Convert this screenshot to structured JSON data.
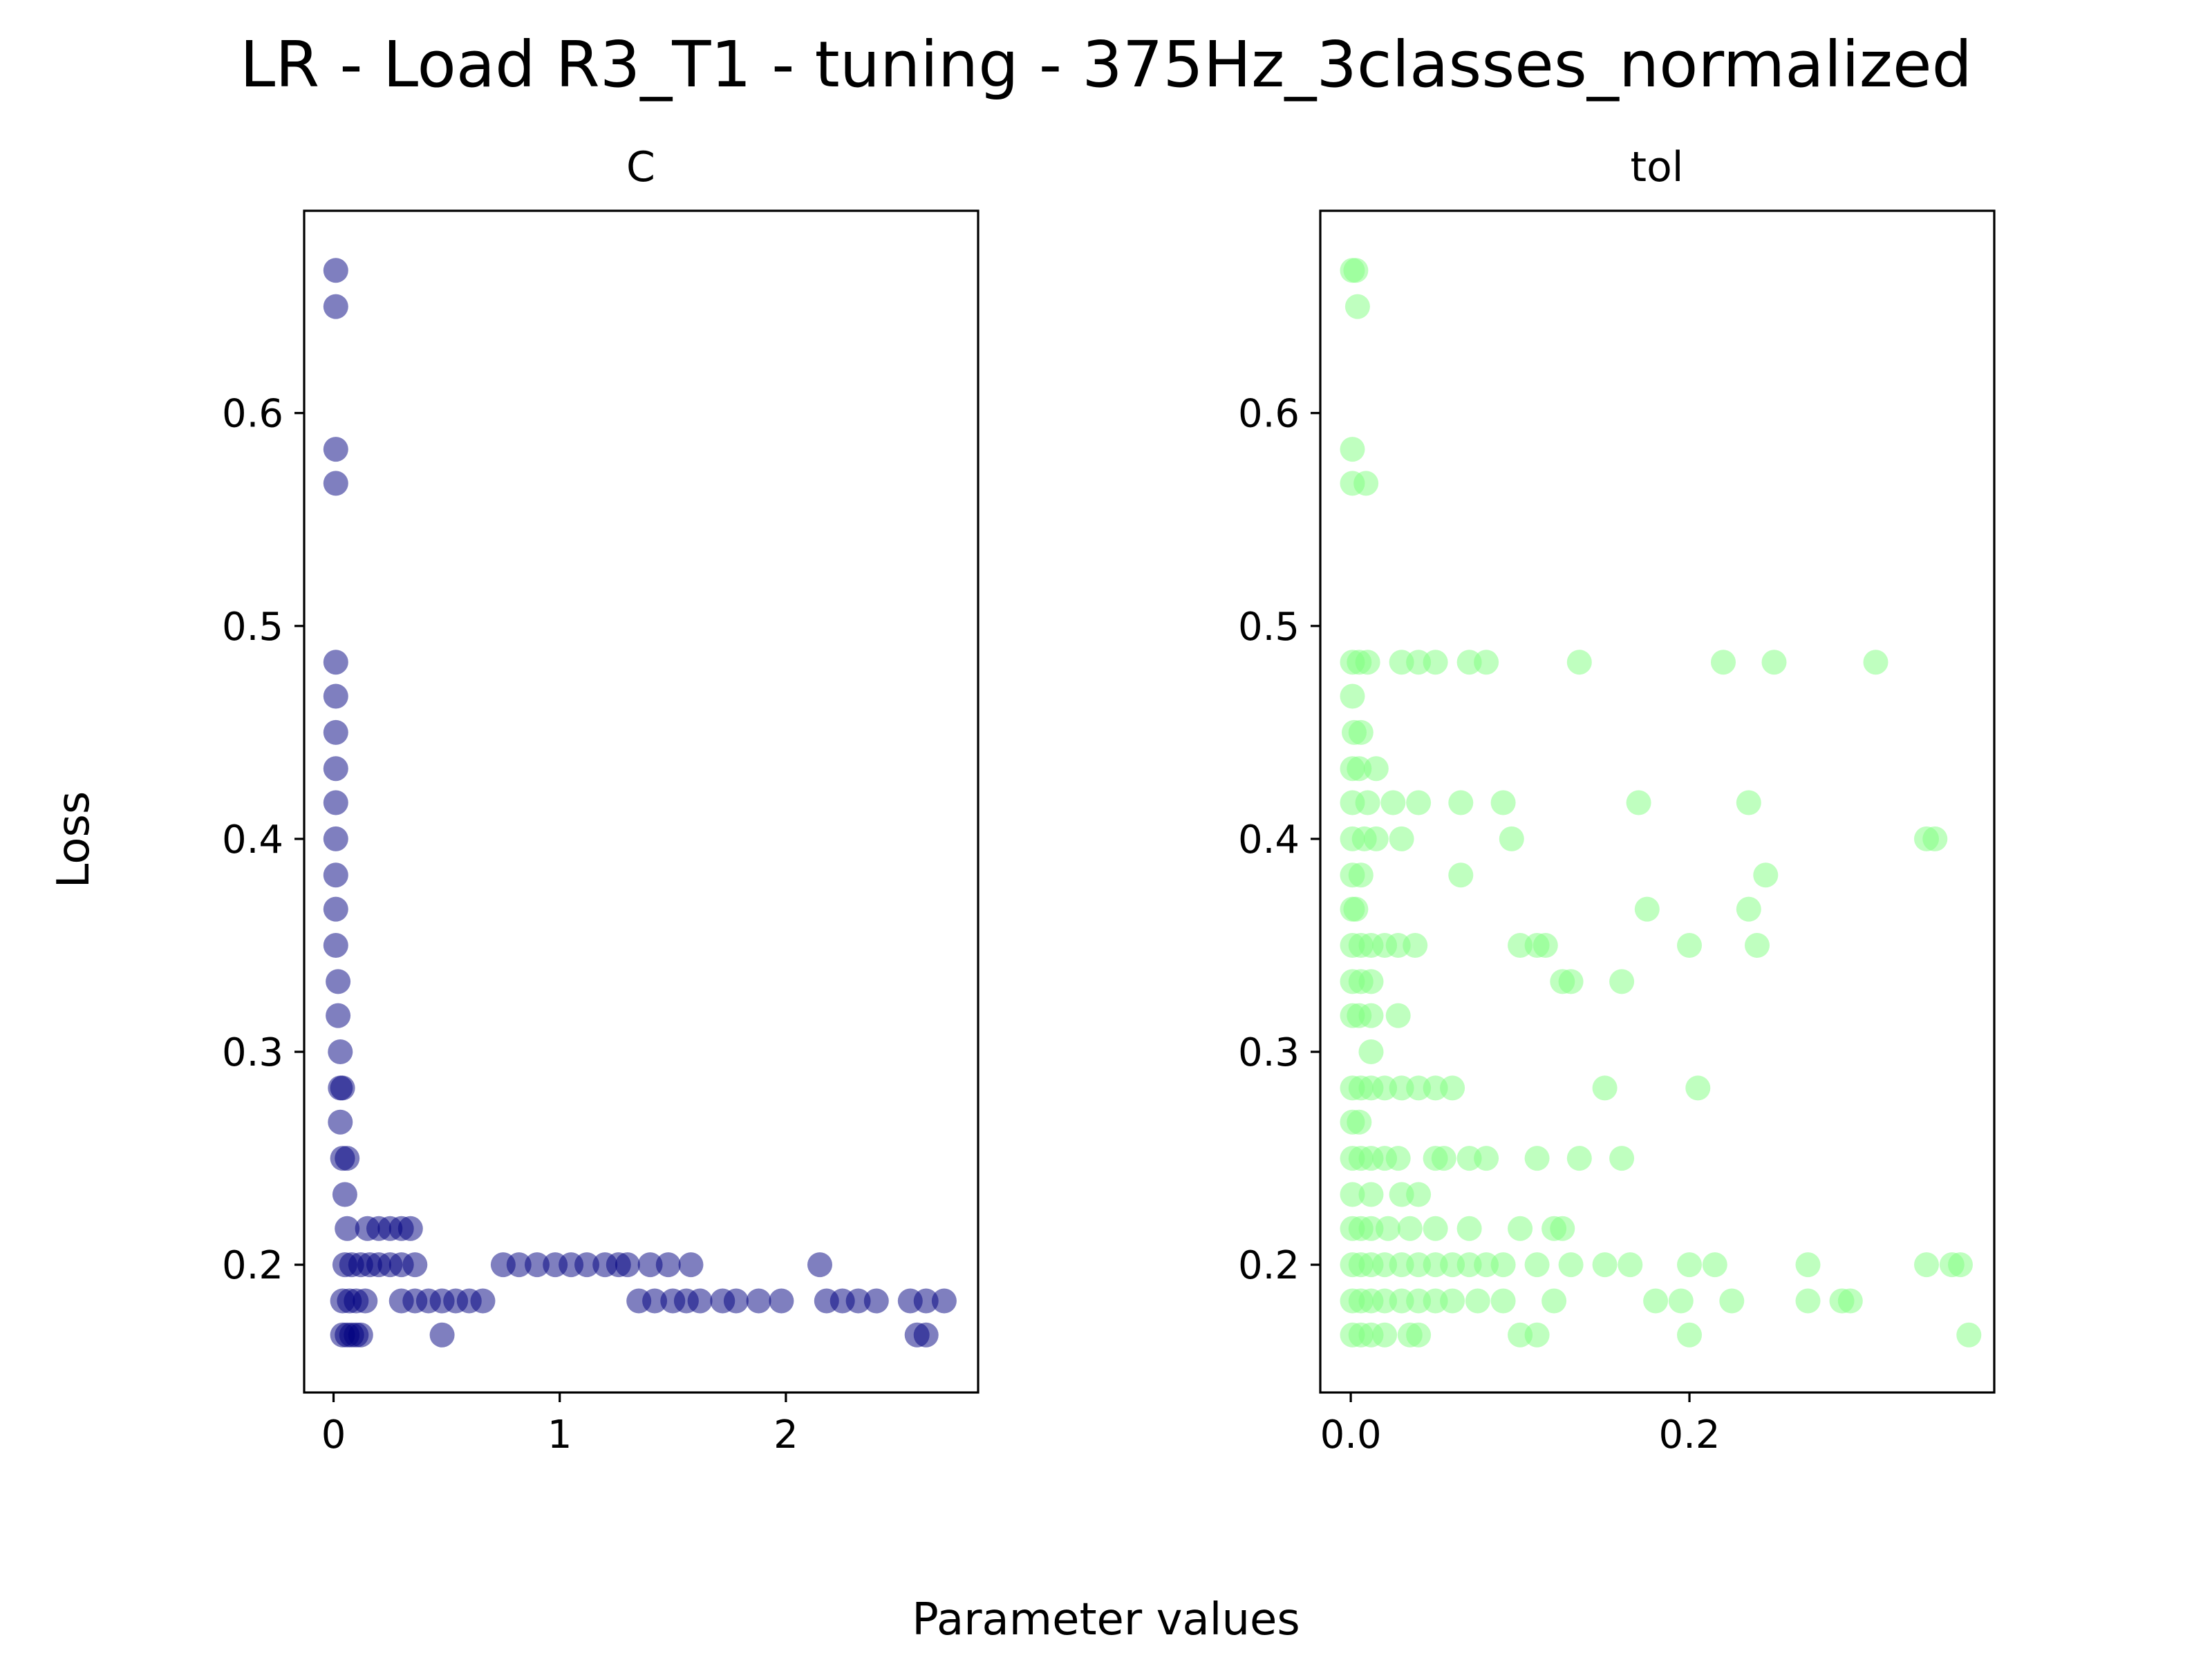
{
  "figure": {
    "title": "LR - Load R3_T1 - tuning - 375Hz_3classes_normalized",
    "xlabel": "Parameter values",
    "ylabel": "Loss"
  },
  "chart_data": [
    {
      "type": "scatter",
      "title": "C",
      "xlim": [
        -0.13,
        2.85
      ],
      "ylim": [
        0.14,
        0.695
      ],
      "xticks": [
        0,
        1,
        2
      ],
      "xtick_labels": [
        "0",
        "1",
        "2"
      ],
      "yticks": [
        0.2,
        0.3,
        0.4,
        0.5,
        0.6
      ],
      "ytick_labels": [
        "0.2",
        "0.3",
        "0.4",
        "0.5",
        "0.6"
      ],
      "color": "#000080",
      "points": [
        [
          0.01,
          0.667
        ],
        [
          0.01,
          0.65
        ],
        [
          0.01,
          0.583
        ],
        [
          0.01,
          0.567
        ],
        [
          0.01,
          0.483
        ],
        [
          0.01,
          0.467
        ],
        [
          0.01,
          0.45
        ],
        [
          0.01,
          0.433
        ],
        [
          0.01,
          0.417
        ],
        [
          0.01,
          0.4
        ],
        [
          0.01,
          0.383
        ],
        [
          0.01,
          0.367
        ],
        [
          0.01,
          0.35
        ],
        [
          0.02,
          0.333
        ],
        [
          0.02,
          0.317
        ],
        [
          0.03,
          0.3
        ],
        [
          0.03,
          0.283
        ],
        [
          0.04,
          0.283
        ],
        [
          0.03,
          0.267
        ],
        [
          0.04,
          0.25
        ],
        [
          0.06,
          0.25
        ],
        [
          0.05,
          0.233
        ],
        [
          0.06,
          0.217
        ],
        [
          0.04,
          0.167
        ],
        [
          0.06,
          0.167
        ],
        [
          0.08,
          0.167
        ],
        [
          0.1,
          0.167
        ],
        [
          0.12,
          0.167
        ],
        [
          0.04,
          0.183
        ],
        [
          0.07,
          0.183
        ],
        [
          0.1,
          0.183
        ],
        [
          0.14,
          0.183
        ],
        [
          0.05,
          0.2
        ],
        [
          0.08,
          0.2
        ],
        [
          0.12,
          0.2
        ],
        [
          0.16,
          0.2
        ],
        [
          0.2,
          0.2
        ],
        [
          0.25,
          0.2
        ],
        [
          0.3,
          0.2
        ],
        [
          0.36,
          0.2
        ],
        [
          0.15,
          0.217
        ],
        [
          0.2,
          0.217
        ],
        [
          0.25,
          0.217
        ],
        [
          0.3,
          0.217
        ],
        [
          0.34,
          0.217
        ],
        [
          0.3,
          0.183
        ],
        [
          0.36,
          0.183
        ],
        [
          0.42,
          0.183
        ],
        [
          0.48,
          0.183
        ],
        [
          0.54,
          0.183
        ],
        [
          0.6,
          0.183
        ],
        [
          0.66,
          0.183
        ],
        [
          0.48,
          0.167
        ],
        [
          0.75,
          0.2
        ],
        [
          0.82,
          0.2
        ],
        [
          0.9,
          0.2
        ],
        [
          0.98,
          0.2
        ],
        [
          1.05,
          0.2
        ],
        [
          1.12,
          0.2
        ],
        [
          1.2,
          0.2
        ],
        [
          1.26,
          0.2
        ],
        [
          1.3,
          0.2
        ],
        [
          1.4,
          0.2
        ],
        [
          1.48,
          0.2
        ],
        [
          1.58,
          0.2
        ],
        [
          1.35,
          0.183
        ],
        [
          1.42,
          0.183
        ],
        [
          1.5,
          0.183
        ],
        [
          1.56,
          0.183
        ],
        [
          1.62,
          0.183
        ],
        [
          1.72,
          0.183
        ],
        [
          1.78,
          0.183
        ],
        [
          1.88,
          0.183
        ],
        [
          1.98,
          0.183
        ],
        [
          2.15,
          0.2
        ],
        [
          2.18,
          0.183
        ],
        [
          2.25,
          0.183
        ],
        [
          2.32,
          0.183
        ],
        [
          2.4,
          0.183
        ],
        [
          2.55,
          0.183
        ],
        [
          2.62,
          0.183
        ],
        [
          2.7,
          0.183
        ],
        [
          2.58,
          0.167
        ],
        [
          2.62,
          0.167
        ]
      ]
    },
    {
      "type": "scatter",
      "title": "tol",
      "xlim": [
        -0.018,
        0.38
      ],
      "ylim": [
        0.14,
        0.695
      ],
      "xticks": [
        0.0,
        0.2
      ],
      "xtick_labels": [
        "0.0",
        "0.2"
      ],
      "yticks": [
        0.2,
        0.3,
        0.4,
        0.5,
        0.6
      ],
      "ytick_labels": [
        "0.2",
        "0.3",
        "0.4",
        "0.5",
        "0.6"
      ],
      "color": "#7fff7f",
      "points": [
        [
          0.001,
          0.667
        ],
        [
          0.003,
          0.667
        ],
        [
          0.004,
          0.65
        ],
        [
          0.001,
          0.583
        ],
        [
          0.001,
          0.567
        ],
        [
          0.009,
          0.567
        ],
        [
          0.001,
          0.483
        ],
        [
          0.005,
          0.483
        ],
        [
          0.01,
          0.483
        ],
        [
          0.03,
          0.483
        ],
        [
          0.04,
          0.483
        ],
        [
          0.05,
          0.483
        ],
        [
          0.07,
          0.483
        ],
        [
          0.08,
          0.483
        ],
        [
          0.135,
          0.483
        ],
        [
          0.22,
          0.483
        ],
        [
          0.25,
          0.483
        ],
        [
          0.31,
          0.483
        ],
        [
          0.001,
          0.467
        ],
        [
          0.002,
          0.45
        ],
        [
          0.006,
          0.45
        ],
        [
          0.001,
          0.433
        ],
        [
          0.005,
          0.433
        ],
        [
          0.015,
          0.433
        ],
        [
          0.001,
          0.417
        ],
        [
          0.01,
          0.417
        ],
        [
          0.025,
          0.417
        ],
        [
          0.04,
          0.417
        ],
        [
          0.065,
          0.417
        ],
        [
          0.09,
          0.417
        ],
        [
          0.17,
          0.417
        ],
        [
          0.235,
          0.417
        ],
        [
          0.001,
          0.4
        ],
        [
          0.008,
          0.4
        ],
        [
          0.015,
          0.4
        ],
        [
          0.03,
          0.4
        ],
        [
          0.095,
          0.4
        ],
        [
          0.34,
          0.4
        ],
        [
          0.345,
          0.4
        ],
        [
          0.001,
          0.383
        ],
        [
          0.006,
          0.383
        ],
        [
          0.065,
          0.383
        ],
        [
          0.245,
          0.383
        ],
        [
          0.001,
          0.367
        ],
        [
          0.003,
          0.367
        ],
        [
          0.175,
          0.367
        ],
        [
          0.235,
          0.367
        ],
        [
          0.001,
          0.35
        ],
        [
          0.006,
          0.35
        ],
        [
          0.012,
          0.35
        ],
        [
          0.02,
          0.35
        ],
        [
          0.028,
          0.35
        ],
        [
          0.038,
          0.35
        ],
        [
          0.1,
          0.35
        ],
        [
          0.11,
          0.35
        ],
        [
          0.115,
          0.35
        ],
        [
          0.2,
          0.35
        ],
        [
          0.24,
          0.35
        ],
        [
          0.001,
          0.333
        ],
        [
          0.006,
          0.333
        ],
        [
          0.012,
          0.333
        ],
        [
          0.125,
          0.333
        ],
        [
          0.13,
          0.333
        ],
        [
          0.16,
          0.333
        ],
        [
          0.001,
          0.317
        ],
        [
          0.005,
          0.317
        ],
        [
          0.012,
          0.317
        ],
        [
          0.028,
          0.317
        ],
        [
          0.012,
          0.3
        ],
        [
          0.001,
          0.283
        ],
        [
          0.006,
          0.283
        ],
        [
          0.012,
          0.283
        ],
        [
          0.02,
          0.283
        ],
        [
          0.03,
          0.283
        ],
        [
          0.04,
          0.283
        ],
        [
          0.05,
          0.283
        ],
        [
          0.06,
          0.283
        ],
        [
          0.15,
          0.283
        ],
        [
          0.205,
          0.283
        ],
        [
          0.001,
          0.267
        ],
        [
          0.005,
          0.267
        ],
        [
          0.001,
          0.25
        ],
        [
          0.006,
          0.25
        ],
        [
          0.012,
          0.25
        ],
        [
          0.02,
          0.25
        ],
        [
          0.028,
          0.25
        ],
        [
          0.05,
          0.25
        ],
        [
          0.055,
          0.25
        ],
        [
          0.07,
          0.25
        ],
        [
          0.08,
          0.25
        ],
        [
          0.11,
          0.25
        ],
        [
          0.135,
          0.25
        ],
        [
          0.16,
          0.25
        ],
        [
          0.001,
          0.233
        ],
        [
          0.012,
          0.233
        ],
        [
          0.03,
          0.233
        ],
        [
          0.04,
          0.233
        ],
        [
          0.001,
          0.217
        ],
        [
          0.006,
          0.217
        ],
        [
          0.012,
          0.217
        ],
        [
          0.022,
          0.217
        ],
        [
          0.035,
          0.217
        ],
        [
          0.05,
          0.217
        ],
        [
          0.07,
          0.217
        ],
        [
          0.1,
          0.217
        ],
        [
          0.12,
          0.217
        ],
        [
          0.125,
          0.217
        ],
        [
          0.001,
          0.2
        ],
        [
          0.006,
          0.2
        ],
        [
          0.012,
          0.2
        ],
        [
          0.02,
          0.2
        ],
        [
          0.03,
          0.2
        ],
        [
          0.04,
          0.2
        ],
        [
          0.05,
          0.2
        ],
        [
          0.06,
          0.2
        ],
        [
          0.07,
          0.2
        ],
        [
          0.08,
          0.2
        ],
        [
          0.09,
          0.2
        ],
        [
          0.11,
          0.2
        ],
        [
          0.13,
          0.2
        ],
        [
          0.15,
          0.2
        ],
        [
          0.165,
          0.2
        ],
        [
          0.2,
          0.2
        ],
        [
          0.215,
          0.2
        ],
        [
          0.27,
          0.2
        ],
        [
          0.34,
          0.2
        ],
        [
          0.355,
          0.2
        ],
        [
          0.36,
          0.2
        ],
        [
          0.001,
          0.183
        ],
        [
          0.006,
          0.183
        ],
        [
          0.012,
          0.183
        ],
        [
          0.02,
          0.183
        ],
        [
          0.03,
          0.183
        ],
        [
          0.04,
          0.183
        ],
        [
          0.05,
          0.183
        ],
        [
          0.06,
          0.183
        ],
        [
          0.075,
          0.183
        ],
        [
          0.09,
          0.183
        ],
        [
          0.12,
          0.183
        ],
        [
          0.18,
          0.183
        ],
        [
          0.195,
          0.183
        ],
        [
          0.225,
          0.183
        ],
        [
          0.27,
          0.183
        ],
        [
          0.29,
          0.183
        ],
        [
          0.295,
          0.183
        ],
        [
          0.001,
          0.167
        ],
        [
          0.006,
          0.167
        ],
        [
          0.012,
          0.167
        ],
        [
          0.02,
          0.167
        ],
        [
          0.035,
          0.167
        ],
        [
          0.04,
          0.167
        ],
        [
          0.1,
          0.167
        ],
        [
          0.11,
          0.167
        ],
        [
          0.2,
          0.167
        ],
        [
          0.365,
          0.167
        ]
      ]
    }
  ]
}
